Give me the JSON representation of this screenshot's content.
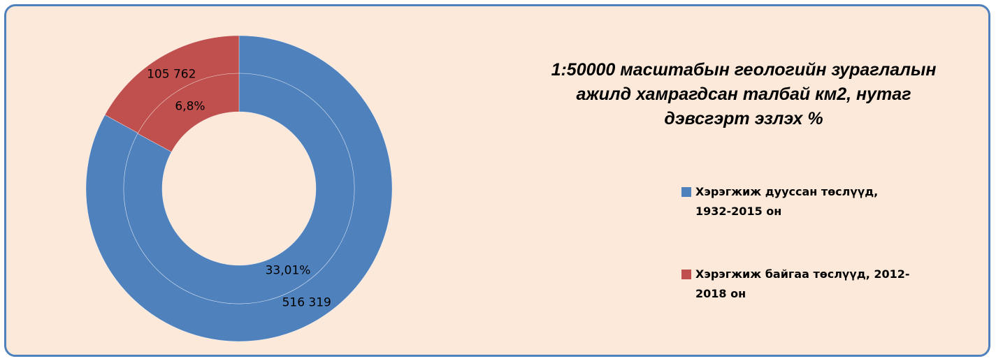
{
  "chart_data": {
    "type": "donut",
    "title": "1:50000 масштабын геологийн зураглалын ажилд хамрагдсан талбай км2, нутаг дэвсгэрт эзлэх %",
    "categories": [
      "Хэрэгжиж дууссан төслүүд, 1932-2015 он",
      "Хэрэгжиж байгаа төслүүд, 2012-2018 он"
    ],
    "colors": [
      "#4f81bd",
      "#c0504d"
    ],
    "rings": [
      {
        "values": [
          516319,
          105762
        ],
        "value_labels": [
          "516 319",
          "105 762"
        ]
      },
      {
        "values": [
          33.01,
          6.8
        ],
        "value_labels": [
          "33,01%",
          "6,8%"
        ]
      }
    ],
    "legend": "right"
  }
}
